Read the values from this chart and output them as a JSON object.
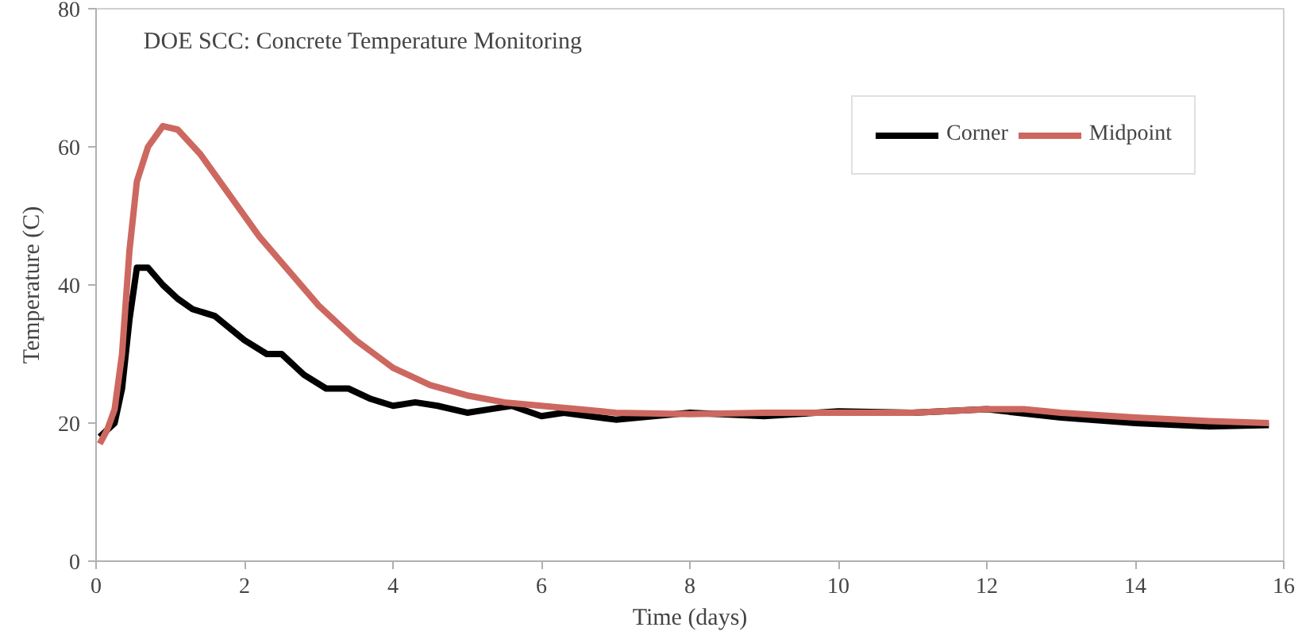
{
  "chart_data": {
    "type": "line",
    "title": "DOE SCC: Concrete Temperature Monitoring",
    "xlabel": "Time (days)",
    "ylabel": "Temperature (C)",
    "xlim": [
      0,
      16
    ],
    "xticks": [
      0,
      2,
      4,
      6,
      8,
      10,
      12,
      14,
      16
    ],
    "ylim": [
      0,
      80
    ],
    "yticks": [
      0,
      20,
      40,
      60,
      80
    ],
    "grid": false,
    "legend": "top right",
    "marker": "none",
    "line_style": "solid",
    "series": [
      {
        "name": "Corner",
        "color": "#000000",
        "x": [
          0.05,
          0.15,
          0.25,
          0.35,
          0.45,
          0.55,
          0.7,
          0.9,
          1.1,
          1.3,
          1.6,
          2.0,
          2.3,
          2.5,
          2.8,
          3.1,
          3.4,
          3.7,
          4.0,
          4.3,
          4.6,
          5.0,
          5.3,
          5.6,
          6.0,
          6.3,
          7.0,
          8,
          9,
          10,
          11,
          12,
          13,
          14,
          15,
          15.8
        ],
        "values": [
          18,
          19,
          20,
          25,
          35,
          42.5,
          42.5,
          40,
          38,
          36.5,
          35.5,
          32,
          30,
          30,
          27,
          25,
          25,
          23.5,
          22.5,
          23,
          22.5,
          21.5,
          22,
          22.5,
          21,
          21.5,
          20.5,
          21.5,
          21,
          21.7,
          21.5,
          22,
          20.8,
          20,
          19.5,
          19.7
        ]
      },
      {
        "name": "Midpoint",
        "color": "#cd6860",
        "x": [
          0.05,
          0.15,
          0.25,
          0.35,
          0.45,
          0.55,
          0.7,
          0.9,
          1.1,
          1.4,
          1.8,
          2.2,
          2.6,
          3.0,
          3.5,
          4.0,
          4.5,
          5,
          5.5,
          6,
          6.5,
          7,
          8,
          9,
          10,
          11,
          12,
          12.5,
          13,
          14,
          15,
          15.8
        ],
        "values": [
          17,
          19,
          22,
          30,
          45,
          55,
          60,
          63,
          62.5,
          59,
          53,
          47,
          42,
          37,
          32,
          28,
          25.5,
          24,
          23,
          22.5,
          22,
          21.5,
          21.3,
          21.5,
          21.5,
          21.5,
          22,
          22,
          21.5,
          20.8,
          20.3,
          20
        ]
      }
    ]
  }
}
